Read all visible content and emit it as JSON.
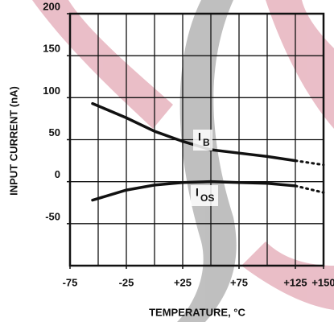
{
  "chart_data": {
    "type": "line",
    "ylabel": "INPUT CURRENT (nA)",
    "xlabel": "TEMPERATURE, °C",
    "xlim": [
      -75,
      150
    ],
    "ylim": [
      -100,
      200
    ],
    "xticks": [
      -75,
      -25,
      {
        "value": 25,
        "label": "+25"
      },
      {
        "value": 75,
        "label": "+75"
      },
      {
        "value": 125,
        "label": "+125"
      },
      {
        "value": 150,
        "label": "+150"
      }
    ],
    "yticks": [
      200,
      150,
      100,
      50,
      0,
      -50
    ],
    "grid_step_x": 25,
    "grid_step_y": 50,
    "x": [
      -55,
      -25,
      0,
      25,
      50,
      75,
      100,
      125,
      150
    ],
    "series": [
      {
        "label_main": "I",
        "label_sub": "B",
        "color": "#111111",
        "values": [
          93,
          76,
          60,
          48,
          38,
          34,
          30,
          25,
          null
        ],
        "dotted_values": [
          null,
          null,
          null,
          null,
          null,
          null,
          null,
          25,
          20
        ]
      },
      {
        "label_main": "I",
        "label_sub": "OS",
        "color": "#111111",
        "values": [
          -22,
          -10,
          -4,
          -1,
          0,
          -1,
          -2,
          -5,
          null
        ],
        "dotted_values": [
          null,
          null,
          null,
          null,
          null,
          null,
          null,
          -5,
          -13
        ]
      }
    ]
  }
}
